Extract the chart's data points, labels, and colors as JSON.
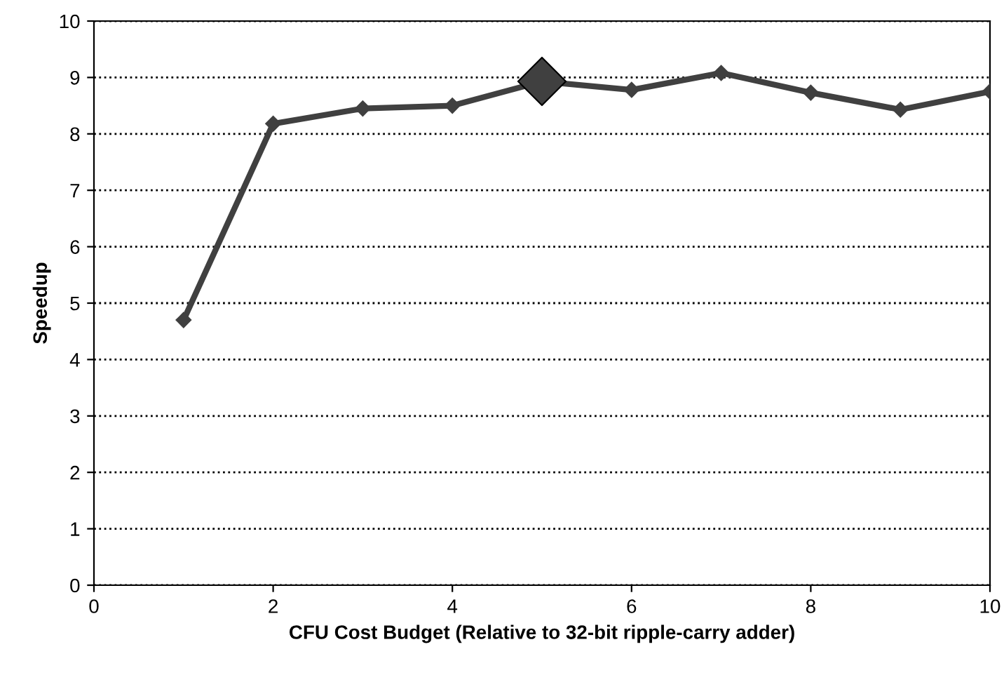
{
  "chart_data": {
    "type": "line",
    "xlabel": "CFU Cost Budget (Relative to 32-bit ripple-carry adder)",
    "ylabel": "Speedup",
    "xlim": [
      0,
      10
    ],
    "xticks": [
      0,
      2,
      4,
      6,
      8,
      10
    ],
    "ylim": [
      0,
      10
    ],
    "yticks": [
      0,
      1,
      2,
      3,
      4,
      5,
      6,
      7,
      8,
      9,
      10
    ],
    "grid": "y",
    "marker": "diamond",
    "line_style": "solid",
    "series": [
      {
        "color": "#404040",
        "x": [
          1,
          2,
          3,
          4,
          5,
          6,
          7,
          8,
          9,
          10
        ],
        "values": [
          4.7,
          8.18,
          8.45,
          8.5,
          8.93,
          8.78,
          9.08,
          8.73,
          8.43,
          8.75
        ]
      },
      {
        "type": "scatter",
        "color": "#404040",
        "x": [
          5
        ],
        "values": [
          8.93
        ]
      }
    ]
  }
}
